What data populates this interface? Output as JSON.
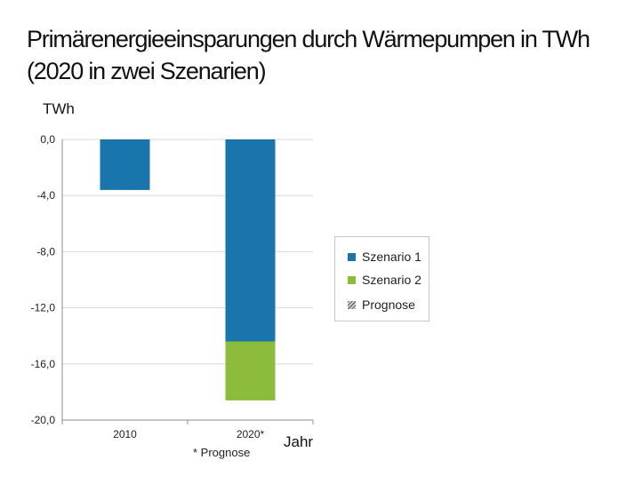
{
  "title_line1": "Primärenergieeinsparungen durch Wärmepumpen in TWh",
  "title_line2": "(2020 in zwei Szenarien)",
  "footnote": "* Prognose",
  "chart_data": {
    "type": "bar",
    "stacked": true,
    "ylabel": "TWh",
    "xlabel": "Jahr",
    "categories": [
      "2010",
      "2020*"
    ],
    "ylim": [
      -20,
      0
    ],
    "yticks": [
      0,
      -4,
      -8,
      -12,
      -16,
      -20
    ],
    "ytick_labels": [
      "0,0",
      "-4,0",
      "-8,0",
      "-12,0",
      "-16,0",
      "-20,0"
    ],
    "series": [
      {
        "name": "Szenario 1",
        "color": "#1b75ad",
        "values": [
          -3.6,
          -14.4
        ]
      },
      {
        "name": "Szenario 2",
        "color": "#8dbb3c",
        "values": [
          0,
          -4.2
        ]
      }
    ],
    "legend": [
      {
        "name": "Szenario 1",
        "swatch": "solid",
        "color": "#1b75ad"
      },
      {
        "name": "Szenario 2",
        "swatch": "solid",
        "color": "#8dbb3c"
      },
      {
        "name": "Prognose",
        "swatch": "hatch",
        "color": "#888888"
      }
    ],
    "legend_position": "right",
    "grid": true
  }
}
